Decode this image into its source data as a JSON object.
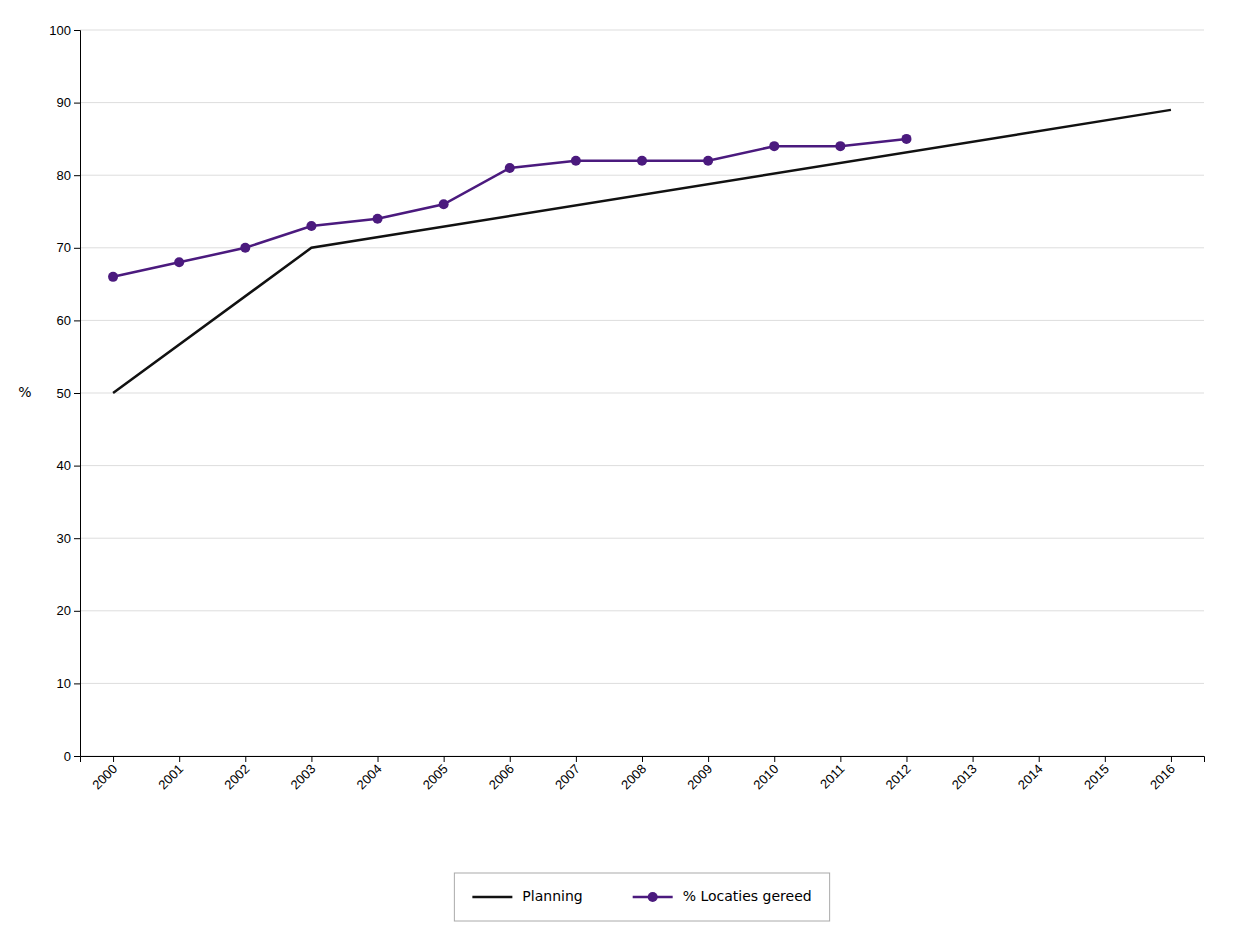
{
  "chart_data": {
    "type": "line",
    "ylabel": "%",
    "series": [
      {
        "name": "Planning",
        "color": "#111111",
        "x": [
          2000,
          2003,
          2016
        ],
        "values": [
          50,
          70,
          89
        ]
      },
      {
        "name": "% Locaties gereed",
        "color": "#4b1a7e",
        "marker": "circle",
        "x": [
          2000,
          2001,
          2002,
          2003,
          2004,
          2005,
          2006,
          2007,
          2008,
          2009,
          2010,
          2011,
          2012
        ],
        "values": [
          66,
          68,
          70,
          73,
          74,
          76,
          81,
          82,
          82,
          82,
          84,
          84,
          85
        ]
      }
    ],
    "xlim": [
      1999.5,
      2016.5
    ],
    "xticks": [
      2000,
      2001,
      2002,
      2003,
      2004,
      2005,
      2006,
      2007,
      2008,
      2009,
      2010,
      2011,
      2012,
      2013,
      2014,
      2015,
      2016
    ],
    "ylim": [
      0,
      100
    ],
    "yticks": [
      0,
      10,
      20,
      30,
      40,
      50,
      60,
      70,
      80,
      90,
      100
    ],
    "grid": "y",
    "legend": "bottom"
  }
}
